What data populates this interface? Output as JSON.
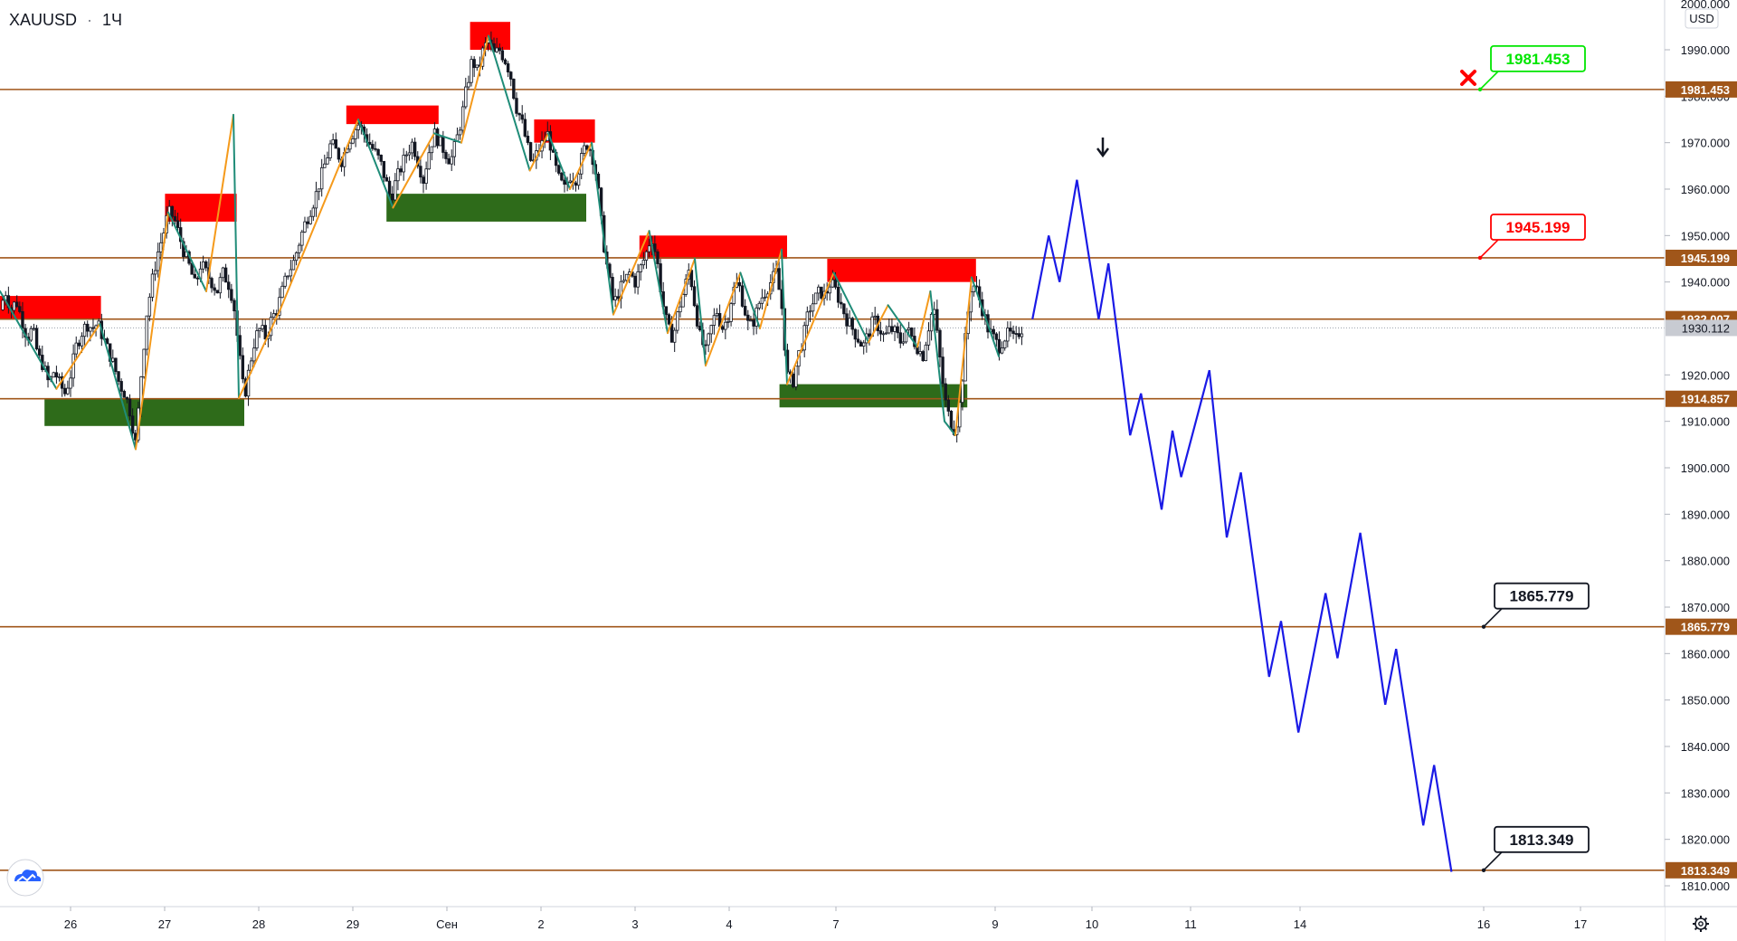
{
  "header": {
    "symbol": "XAUUSD",
    "separator": "·",
    "interval": "1Ч"
  },
  "y_axis": {
    "currency": "USD",
    "top_partial_label": "2000.000"
  },
  "colors": {
    "level_line": "#a0561a",
    "level_tag_bg": "#a0561a",
    "current_price_bg": "#c8cbd2",
    "supply_zone": "#ff0000",
    "demand_zone": "#2e6b1a",
    "zigzag_up": "#f59a1b",
    "zigzag_down": "#1f8c78",
    "forecast": "#1a1ae6",
    "candle": "#131722",
    "callout_green": "#00e600",
    "callout_red": "#ff0000",
    "callout_black": "#131722",
    "cross": "#ff0000",
    "arrow": "#131722"
  },
  "icons": {
    "logo": "tradingview-cloud-icon",
    "settings": "gear-icon",
    "invalidated": "x-mark-icon",
    "down_arrow": "arrow-down-icon"
  },
  "chart_data": {
    "type": "candlestick",
    "title": "XAUUSD · 1Ч",
    "ylim": [
      1806,
      2001
    ],
    "y_ticks": [
      "1990.000",
      "1980.000",
      "1970.000",
      "1960.000",
      "1950.000",
      "1940.000",
      "1920.000",
      "1910.000",
      "1900.000",
      "1890.000",
      "1880.000",
      "1870.000",
      "1860.000",
      "1850.000",
      "1840.000",
      "1830.000",
      "1820.000",
      "1810.000"
    ],
    "x_ticks": [
      "26",
      "27",
      "28",
      "29",
      "Сен",
      "2",
      "3",
      "4",
      "7",
      "9",
      "10",
      "11",
      "14",
      "16",
      "17"
    ],
    "current_price": {
      "label": "1930.112",
      "value": 1930.112
    },
    "levels": [
      {
        "value": 1981.453,
        "label": "1981.453",
        "callout": "1981.453",
        "callout_style": "green"
      },
      {
        "value": 1945.199,
        "label": "1945.199",
        "callout": "1945.199",
        "callout_style": "red"
      },
      {
        "value": 1932.007,
        "label": "1932.007",
        "callout": "",
        "callout_style": ""
      },
      {
        "value": 1914.857,
        "label": "1914.857",
        "callout": "",
        "callout_style": ""
      },
      {
        "value": 1865.779,
        "label": "1865.779",
        "callout": "1865.779",
        "callout_style": "black"
      },
      {
        "value": 1813.349,
        "label": "1813.349",
        "callout": "1813.349",
        "callout_style": "black"
      }
    ],
    "price_path": [
      [
        0,
        1934
      ],
      [
        5,
        1938
      ],
      [
        10,
        1934
      ],
      [
        15,
        1936
      ],
      [
        20,
        1932
      ],
      [
        25,
        1928
      ],
      [
        30,
        1930
      ],
      [
        35,
        1924
      ],
      [
        40,
        1922
      ],
      [
        45,
        1918
      ],
      [
        50,
        1921
      ],
      [
        55,
        1918
      ],
      [
        60,
        1916
      ],
      [
        65,
        1920
      ],
      [
        70,
        1926
      ],
      [
        75,
        1929
      ],
      [
        80,
        1931
      ],
      [
        85,
        1930
      ],
      [
        90,
        1931
      ],
      [
        95,
        1928
      ],
      [
        100,
        1925
      ],
      [
        105,
        1922
      ],
      [
        110,
        1918
      ],
      [
        115,
        1916
      ],
      [
        120,
        1912
      ],
      [
        125,
        1905
      ],
      [
        130,
        1920
      ],
      [
        135,
        1933
      ],
      [
        140,
        1940
      ],
      [
        145,
        1946
      ],
      [
        150,
        1950
      ],
      [
        155,
        1955
      ],
      [
        160,
        1954
      ],
      [
        165,
        1950
      ],
      [
        170,
        1946
      ],
      [
        175,
        1943
      ],
      [
        180,
        1939
      ],
      [
        185,
        1944
      ],
      [
        190,
        1942
      ],
      [
        195,
        1940
      ],
      [
        200,
        1938
      ],
      [
        205,
        1942
      ],
      [
        210,
        1940
      ],
      [
        215,
        1936
      ],
      [
        220,
        1925
      ],
      [
        225,
        1915
      ],
      [
        230,
        1922
      ],
      [
        235,
        1928
      ],
      [
        240,
        1930
      ],
      [
        245,
        1928
      ],
      [
        250,
        1932
      ],
      [
        255,
        1934
      ],
      [
        260,
        1938
      ],
      [
        265,
        1942
      ],
      [
        270,
        1944
      ],
      [
        275,
        1948
      ],
      [
        280,
        1952
      ],
      [
        285,
        1955
      ],
      [
        290,
        1958
      ],
      [
        295,
        1962
      ],
      [
        300,
        1966
      ],
      [
        305,
        1970
      ],
      [
        310,
        1968
      ],
      [
        315,
        1966
      ],
      [
        320,
        1970
      ],
      [
        325,
        1972
      ],
      [
        330,
        1974
      ],
      [
        335,
        1972
      ],
      [
        340,
        1970
      ],
      [
        345,
        1968
      ],
      [
        350,
        1966
      ],
      [
        355,
        1962
      ],
      [
        360,
        1958
      ],
      [
        365,
        1962
      ],
      [
        370,
        1965
      ],
      [
        375,
        1968
      ],
      [
        380,
        1970
      ],
      [
        385,
        1966
      ],
      [
        390,
        1962
      ],
      [
        395,
        1968
      ],
      [
        400,
        1972
      ],
      [
        405,
        1970
      ],
      [
        410,
        1968
      ],
      [
        415,
        1966
      ],
      [
        420,
        1970
      ],
      [
        425,
        1975
      ],
      [
        430,
        1982
      ],
      [
        435,
        1988
      ],
      [
        440,
        1985
      ],
      [
        445,
        1990
      ],
      [
        450,
        1992
      ],
      [
        455,
        1989
      ],
      [
        460,
        1990
      ],
      [
        465,
        1988
      ],
      [
        470,
        1985
      ],
      [
        475,
        1978
      ],
      [
        480,
        1975
      ],
      [
        485,
        1970
      ],
      [
        490,
        1965
      ],
      [
        495,
        1968
      ],
      [
        500,
        1970
      ],
      [
        505,
        1972
      ],
      [
        510,
        1966
      ],
      [
        515,
        1962
      ],
      [
        520,
        1960
      ],
      [
        525,
        1963
      ],
      [
        530,
        1962
      ],
      [
        535,
        1966
      ],
      [
        540,
        1970
      ],
      [
        545,
        1968
      ],
      [
        550,
        1962
      ],
      [
        555,
        1950
      ],
      [
        560,
        1942
      ],
      [
        565,
        1935
      ],
      [
        570,
        1938
      ],
      [
        575,
        1940
      ],
      [
        580,
        1942
      ],
      [
        585,
        1940
      ],
      [
        590,
        1943
      ],
      [
        595,
        1946
      ],
      [
        600,
        1950
      ],
      [
        605,
        1945
      ],
      [
        610,
        1936
      ],
      [
        615,
        1930
      ],
      [
        620,
        1928
      ],
      [
        625,
        1934
      ],
      [
        630,
        1938
      ],
      [
        635,
        1943
      ],
      [
        640,
        1935
      ],
      [
        645,
        1928
      ],
      [
        650,
        1925
      ],
      [
        655,
        1930
      ],
      [
        660,
        1934
      ],
      [
        665,
        1930
      ],
      [
        670,
        1932
      ],
      [
        675,
        1938
      ],
      [
        680,
        1940
      ],
      [
        685,
        1935
      ],
      [
        690,
        1930
      ],
      [
        695,
        1932
      ],
      [
        700,
        1936
      ],
      [
        705,
        1938
      ],
      [
        710,
        1940
      ],
      [
        715,
        1942
      ],
      [
        720,
        1935
      ],
      [
        725,
        1920
      ],
      [
        730,
        1918
      ],
      [
        735,
        1924
      ],
      [
        740,
        1928
      ],
      [
        745,
        1934
      ],
      [
        750,
        1936
      ],
      [
        755,
        1938
      ],
      [
        760,
        1937
      ],
      [
        765,
        1940
      ],
      [
        770,
        1938
      ],
      [
        775,
        1935
      ],
      [
        780,
        1932
      ],
      [
        785,
        1930
      ],
      [
        790,
        1928
      ],
      [
        795,
        1926
      ],
      [
        800,
        1929
      ],
      [
        805,
        1932
      ],
      [
        810,
        1930
      ],
      [
        815,
        1928
      ],
      [
        820,
        1930
      ],
      [
        825,
        1929
      ],
      [
        830,
        1927
      ],
      [
        835,
        1930
      ],
      [
        840,
        1928
      ],
      [
        845,
        1926
      ],
      [
        850,
        1924
      ],
      [
        855,
        1930
      ],
      [
        860,
        1935
      ],
      [
        865,
        1925
      ],
      [
        870,
        1915
      ],
      [
        875,
        1910
      ],
      [
        880,
        1908
      ],
      [
        885,
        1915
      ],
      [
        890,
        1930
      ],
      [
        895,
        1940
      ],
      [
        900,
        1938
      ],
      [
        905,
        1934
      ],
      [
        910,
        1930
      ],
      [
        915,
        1928
      ],
      [
        920,
        1926
      ],
      [
        925,
        1928
      ],
      [
        930,
        1929
      ],
      [
        935,
        1927
      ],
      [
        940,
        1930
      ],
      [
        943,
        1930
      ]
    ],
    "zigzag_swings": [
      [
        0,
        1938
      ],
      [
        52,
        1917
      ],
      [
        92,
        1931
      ],
      [
        125,
        1904
      ],
      [
        155,
        1955
      ],
      [
        190,
        1938
      ],
      [
        215,
        1976
      ],
      [
        220,
        1915
      ],
      [
        258,
        1934
      ],
      [
        330,
        1975
      ],
      [
        362,
        1956
      ],
      [
        400,
        1972
      ],
      [
        425,
        1970
      ],
      [
        450,
        1993
      ],
      [
        488,
        1964
      ],
      [
        505,
        1972
      ],
      [
        525,
        1960
      ],
      [
        545,
        1970
      ],
      [
        565,
        1933
      ],
      [
        598,
        1951
      ],
      [
        615,
        1929
      ],
      [
        640,
        1945
      ],
      [
        650,
        1922
      ],
      [
        682,
        1942
      ],
      [
        700,
        1930
      ],
      [
        720,
        1947
      ],
      [
        725,
        1918
      ],
      [
        768,
        1942
      ],
      [
        800,
        1927
      ],
      [
        818,
        1935
      ],
      [
        845,
        1926
      ],
      [
        857,
        1938
      ],
      [
        870,
        1910
      ],
      [
        880,
        1907
      ],
      [
        895,
        1941
      ],
      [
        920,
        1924
      ]
    ],
    "supply_zones": [
      {
        "x": [
          0,
          93
        ],
        "y": [
          1932,
          1937
        ]
      },
      {
        "x": [
          152,
          218
        ],
        "y": [
          1953,
          1959
        ]
      },
      {
        "x": [
          319,
          404
        ],
        "y": [
          1974,
          1978
        ]
      },
      {
        "x": [
          433,
          470
        ],
        "y": [
          1990,
          1996
        ]
      },
      {
        "x": [
          492,
          548
        ],
        "y": [
          1970,
          1975
        ]
      },
      {
        "x": [
          589,
          725
        ],
        "y": [
          1945,
          1950
        ]
      },
      {
        "x": [
          762,
          899
        ],
        "y": [
          1940,
          1945
        ]
      }
    ],
    "demand_zones": [
      {
        "x": [
          41,
          225
        ],
        "y": [
          1909,
          1915
        ]
      },
      {
        "x": [
          356,
          540
        ],
        "y": [
          1953,
          1959
        ]
      },
      {
        "x": [
          718,
          891
        ],
        "y": [
          1913,
          1918
        ]
      }
    ],
    "forecast": [
      [
        951,
        1932
      ],
      [
        966,
        1950
      ],
      [
        976,
        1940
      ],
      [
        992,
        1962
      ],
      [
        1012,
        1932
      ],
      [
        1021,
        1944
      ],
      [
        1041,
        1907
      ],
      [
        1051,
        1916
      ],
      [
        1070,
        1891
      ],
      [
        1080,
        1908
      ],
      [
        1088,
        1898
      ],
      [
        1114,
        1921
      ],
      [
        1130,
        1885
      ],
      [
        1143,
        1899
      ],
      [
        1169,
        1855
      ],
      [
        1180,
        1867
      ],
      [
        1196,
        1843
      ],
      [
        1221,
        1873
      ],
      [
        1232,
        1859
      ],
      [
        1253,
        1886
      ],
      [
        1276,
        1849
      ],
      [
        1286,
        1861
      ],
      [
        1311,
        1823
      ],
      [
        1321,
        1836
      ],
      [
        1337,
        1813
      ]
    ]
  }
}
